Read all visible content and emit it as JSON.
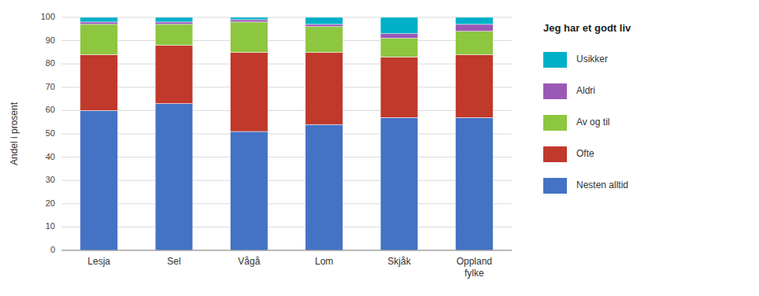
{
  "chart_data": {
    "type": "bar",
    "stacked": true,
    "categories": [
      "Lesja",
      "Sel",
      "Vågå",
      "Lom",
      "Skjåk",
      "Oppland\nfylke"
    ],
    "series": [
      {
        "name": "Nesten alltid",
        "color": "#4472C4",
        "values": [
          60,
          63,
          51,
          54,
          57,
          57
        ]
      },
      {
        "name": "Ofte",
        "color": "#C0392B",
        "values": [
          24,
          25,
          34,
          31,
          26,
          27
        ]
      },
      {
        "name": "Av og til",
        "color": "#8DC63F",
        "values": [
          13,
          9,
          13,
          11,
          8,
          10
        ]
      },
      {
        "name": "Aldri",
        "color": "#9B59B6",
        "values": [
          1,
          1,
          1,
          1,
          2,
          3
        ]
      },
      {
        "name": "Usikker",
        "color": "#00B0C8",
        "values": [
          2,
          2,
          1,
          3,
          7,
          3
        ]
      }
    ],
    "legend_title": "Jeg har et godt liv",
    "y_label": "Andel i prosent",
    "ylim": [
      0,
      100
    ],
    "yticks": [
      0,
      10,
      20,
      30,
      40,
      50,
      60,
      70,
      80,
      90,
      100
    ],
    "grid": true,
    "legend": "right"
  }
}
